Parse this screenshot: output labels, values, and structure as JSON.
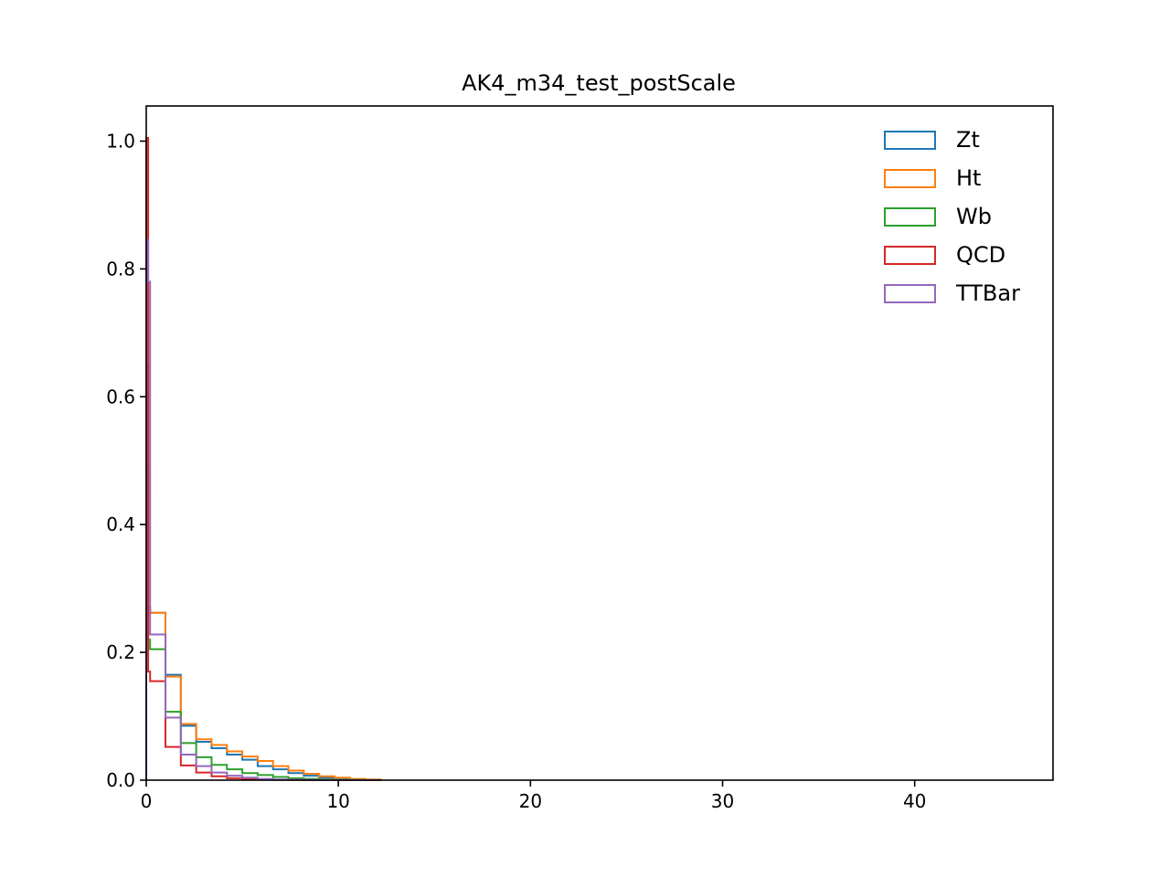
{
  "chart_data": {
    "type": "histogram-step",
    "title": "AK4_m34_test_postScale",
    "xlabel": "",
    "ylabel": "",
    "xlim": [
      0,
      47.2
    ],
    "ylim": [
      0,
      1.055
    ],
    "x_ticks": [
      0,
      10,
      20,
      30,
      40
    ],
    "x_tick_labels": [
      "0",
      "10",
      "20",
      "30",
      "40"
    ],
    "y_ticks": [
      0.0,
      0.2,
      0.4,
      0.6,
      0.8,
      1.0
    ],
    "y_tick_labels": [
      "0.0",
      "0.2",
      "0.4",
      "0.6",
      "0.8",
      "1.0"
    ],
    "grid": false,
    "legend_position": "top-right",
    "bin_edges": [
      0,
      0.1,
      0.2,
      1.0,
      1.8,
      2.6,
      3.4,
      4.2,
      5.0,
      5.8,
      6.6,
      7.4,
      8.2,
      9.0,
      9.8,
      10.6,
      11.4,
      12.2
    ],
    "series": [
      {
        "name": "Zt",
        "color": "#1f77b4",
        "values": [
          0.49,
          0.27,
          0.262,
          0.165,
          0.085,
          0.06,
          0.05,
          0.04,
          0.032,
          0.022,
          0.017,
          0.011,
          0.007,
          0.004,
          0.003,
          0.001,
          0.0005
        ]
      },
      {
        "name": "Ht",
        "color": "#ff7f0e",
        "values": [
          0.45,
          0.27,
          0.262,
          0.162,
          0.088,
          0.064,
          0.055,
          0.045,
          0.037,
          0.03,
          0.022,
          0.015,
          0.01,
          0.006,
          0.004,
          0.002,
          0.001
        ]
      },
      {
        "name": "Wb",
        "color": "#2ca02c",
        "values": [
          0.65,
          0.22,
          0.205,
          0.107,
          0.058,
          0.036,
          0.024,
          0.017,
          0.011,
          0.008,
          0.005,
          0.003,
          0.002,
          0.001,
          0.0005,
          0.0003,
          0.0001
        ]
      },
      {
        "name": "QCD",
        "color": "#d62728",
        "values": [
          1.005,
          0.17,
          0.155,
          0.052,
          0.023,
          0.012,
          0.006,
          0.003,
          0.002,
          0.001,
          0.0005,
          0.0003,
          0.0002,
          0.0001,
          0.0,
          0.0,
          0.0
        ]
      },
      {
        "name": "TTBar",
        "color": "#9467bd",
        "values": [
          0.845,
          0.78,
          0.228,
          0.098,
          0.04,
          0.022,
          0.012,
          0.007,
          0.004,
          0.002,
          0.001,
          0.0007,
          0.0004,
          0.0002,
          0.0001,
          0.0,
          0.0
        ]
      }
    ]
  }
}
